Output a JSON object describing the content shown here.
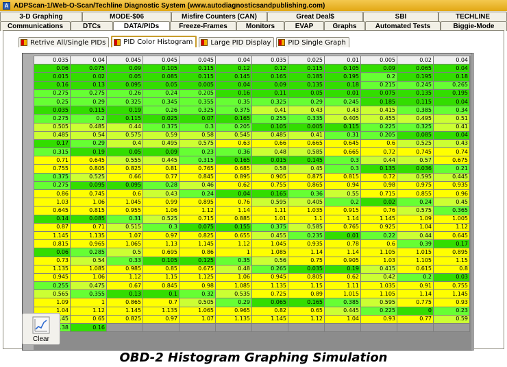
{
  "window": {
    "title": "ADPScan-1/Web-O-Scan/Techline Diagnostic System     (www.autodiagnosticsandpublishing.com)"
  },
  "tabs": {
    "row1": [
      "3-D Graphing",
      "MODE-$06",
      "Misfire Counters (CAN)",
      "Great Deal$",
      "SBI",
      "TECHLINE"
    ],
    "row2": [
      "Communications",
      "DTCs",
      "DATA/PIDs",
      "Freeze-Frames",
      "Monitors",
      "EVAP",
      "Graphs",
      "Automated Tests",
      "Biggie-Mode"
    ],
    "active": "DATA/PIDs"
  },
  "subtabs": {
    "items": [
      "Retrive All/Single PIDs",
      "PID Color Histogram",
      "Large PID Display",
      "PID Single Graph"
    ],
    "active": "PID Color Histogram"
  },
  "histogram": {
    "colors": {
      "green_bright": "#33dd00",
      "green": "#66ff33",
      "yellow_green": "#ccff33",
      "yellow": "#ffff00",
      "header_row": "#f0f0f0",
      "empty": "#9a9a9a"
    },
    "rows": [
      [
        "0.035",
        "0.04",
        "0.045",
        "0.045",
        "0.045",
        "0.04",
        "0.035",
        "0.025",
        "0.01",
        "0.005",
        "0.02",
        "0.04"
      ],
      [
        "0.06",
        "0.075",
        "0.09",
        "0.105",
        "0.115",
        "0.12",
        "0.12",
        "0.115",
        "0.105",
        "0.09",
        "0.065",
        "0.04"
      ],
      [
        "0.015",
        "0.02",
        "0.05",
        "0.085",
        "0.115",
        "0.145",
        "0.165",
        "0.185",
        "0.195",
        "0.2",
        "0.195",
        "0.18"
      ],
      [
        "0.16",
        "0.13",
        "0.095",
        "0.05",
        "0.005",
        "0.04",
        "0.09",
        "0.135",
        "0.18",
        "0.215",
        "0.245",
        "0.265"
      ],
      [
        "0.275",
        "0.275",
        "0.26",
        "0.24",
        "0.205",
        "0.16",
        "0.11",
        "0.05",
        "0.01",
        "0.075",
        "0.135",
        "0.195"
      ],
      [
        "0.25",
        "0.29",
        "0.325",
        "0.345",
        "0.355",
        "0.35",
        "0.325",
        "0.29",
        "0.245",
        "0.185",
        "0.115",
        "0.04"
      ],
      [
        "0.035",
        "0.115",
        "0.19",
        "0.26",
        "0.325",
        "0.375",
        "0.41",
        "0.43",
        "0.43",
        "0.415",
        "0.385",
        "0.34"
      ],
      [
        "0.275",
        "0.2",
        "0.115",
        "0.025",
        "0.07",
        "0.165",
        "0.255",
        "0.335",
        "0.405",
        "0.455",
        "0.495",
        "0.51"
      ],
      [
        "0.505",
        "0.485",
        "0.44",
        "0.375",
        "0.3",
        "0.205",
        "0.105",
        "0.005",
        "0.115",
        "0.225",
        "0.325",
        "0.41"
      ],
      [
        "0.485",
        "0.54",
        "0.575",
        "0.59",
        "0.58",
        "0.545",
        "0.485",
        "0.41",
        "0.31",
        "0.205",
        "0.085",
        "0.04"
      ],
      [
        "0.17",
        "0.29",
        "0.4",
        "0.495",
        "0.575",
        "0.63",
        "0.66",
        "0.665",
        "0.645",
        "0.6",
        "0.525",
        "0.43"
      ],
      [
        "0.315",
        "0.19",
        "0.05",
        "0.09",
        "0.23",
        "0.36",
        "0.48",
        "0.585",
        "0.665",
        "0.72",
        "0.745",
        "0.74"
      ],
      [
        "0.71",
        "0.645",
        "0.555",
        "0.445",
        "0.315",
        "0.165",
        "0.015",
        "0.145",
        "0.3",
        "0.44",
        "0.57",
        "0.675"
      ],
      [
        "0.755",
        "0.805",
        "0.825",
        "0.81",
        "0.765",
        "0.685",
        "0.58",
        "0.45",
        "0.3",
        "0.135",
        "0.036",
        "0.21"
      ],
      [
        "0.375",
        "0.525",
        "0.66",
        "0.77",
        "0.845",
        "0.895",
        "0.905",
        "0.875",
        "0.815",
        "0.72",
        "0.595",
        "0.445"
      ],
      [
        "0.275",
        "0.095",
        "0.095",
        "0.28",
        "0.46",
        "0.62",
        "0.755",
        "0.865",
        "0.94",
        "0.98",
        "0.975",
        "0.935"
      ],
      [
        "0.86",
        "0.745",
        "0.6",
        "0.43",
        "0.24",
        "0.04",
        "0.165",
        "0.36",
        "0.55",
        "0.715",
        "0.855",
        "0.96"
      ],
      [
        "1.03",
        "1.06",
        "1.045",
        "0.99",
        "0.895",
        "0.76",
        "0.595",
        "0.405",
        "0.2",
        "0.02",
        "0.24",
        "0.45"
      ],
      [
        "0.645",
        "0.815",
        "0.955",
        "1.06",
        "1.12",
        "1.14",
        "1.11",
        "1.035",
        "0.915",
        "0.76",
        "0.575",
        "0.365"
      ],
      [
        "0.14",
        "0.085",
        "0.31",
        "0.525",
        "0.715",
        "0.885",
        "1.01",
        "1.1",
        "1.14",
        "1.145",
        "1.09",
        "1.005"
      ],
      [
        "0.87",
        "0.71",
        "0.515",
        "0.3",
        "0.075",
        "0.155",
        "0.375",
        "0.585",
        "0.765",
        "0.925",
        "1.04",
        "1.12"
      ],
      [
        "1.145",
        "1.135",
        "1.07",
        "0.97",
        "0.825",
        "0.655",
        "0.455",
        "0.235",
        "0.01",
        "0.22",
        "0.44",
        "0.645"
      ],
      [
        "0.815",
        "0.965",
        "1.065",
        "1.13",
        "1.145",
        "1.12",
        "1.045",
        "0.935",
        "0.78",
        "0.6",
        "0.39",
        "0.17"
      ],
      [
        "0.06",
        "0.285",
        "0.5",
        "0.695",
        "0.86",
        "1",
        "1.085",
        "1.14",
        "1.14",
        "1.105",
        "1.015",
        "0.895"
      ],
      [
        "0.73",
        "0.54",
        "0.33",
        "0.105",
        "0.125",
        "0.35",
        "0.56",
        "0.75",
        "0.905",
        "1.03",
        "1.105",
        "1.15"
      ],
      [
        "1.135",
        "1.085",
        "0.985",
        "0.85",
        "0.675",
        "0.48",
        "0.265",
        "0.035",
        "0.19",
        "0.415",
        "0.615",
        "0.8"
      ],
      [
        "0.945",
        "1.06",
        "1.12",
        "1.15",
        "1.125",
        "1.06",
        "0.945",
        "0.805",
        "0.62",
        "0.42",
        "0.2",
        "0.03"
      ],
      [
        "0.255",
        "0.475",
        "0.67",
        "0.845",
        "0.98",
        "1.085",
        "1.135",
        "1.15",
        "1.11",
        "1.035",
        "0.91",
        "0.755"
      ],
      [
        "0.565",
        "0.355",
        "0.13",
        "0.1",
        "0.32",
        "0.535",
        "0.725",
        "0.89",
        "1.015",
        "1.105",
        "1.14",
        "1.145"
      ],
      [
        "1.09",
        "1",
        "0.865",
        "0.7",
        "0.505",
        "0.29",
        "0.065",
        "0.165",
        "0.385",
        "0.595",
        "0.775",
        "0.93"
      ],
      [
        "1.04",
        "1.12",
        "1.145",
        "1.135",
        "1.065",
        "0.965",
        "0.82",
        "0.65",
        "0.445",
        "0.225",
        "0",
        "0.23"
      ],
      [
        "0.45",
        "0.65",
        "0.825",
        "0.97",
        "1.07",
        "1.135",
        "1.145",
        "1.12",
        "1.04",
        "0.93",
        "0.77",
        "0.59"
      ],
      [
        "0.38",
        "0.16",
        "",
        "",
        "",
        "",
        "",
        "",
        "",
        "",
        "",
        ""
      ]
    ]
  },
  "clear_button": {
    "label": "Clear"
  },
  "caption": {
    "text": "OBD-2 Histogram Graphing Simulation"
  }
}
